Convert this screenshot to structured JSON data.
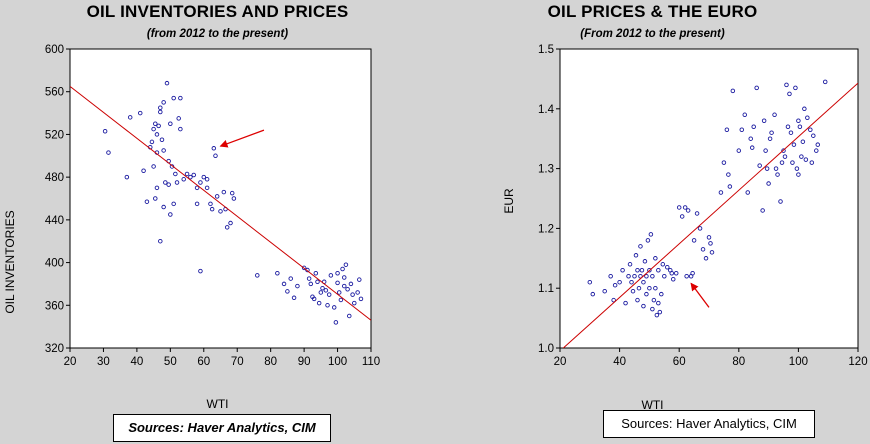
{
  "chart_data": [
    {
      "type": "scatter",
      "title": "OIL INVENTORIES AND PRICES",
      "subtitle": "(from 2012 to the present)",
      "xlabel": "WTI",
      "ylabel": "OIL INVENTORIES",
      "xlim": [
        20,
        110
      ],
      "ylim": [
        320,
        600
      ],
      "xticks": [
        20,
        30,
        40,
        50,
        60,
        70,
        80,
        90,
        100,
        110
      ],
      "yticks": [
        320,
        360,
        400,
        440,
        480,
        520,
        560,
        600
      ],
      "point_color": "#1a1aa0",
      "fit_line": {
        "x": [
          20,
          110
        ],
        "y": [
          565,
          346
        ],
        "color": "#cc0000"
      },
      "arrow": {
        "from": [
          78,
          524
        ],
        "to": [
          65,
          509
        ],
        "color": "#dd0000"
      },
      "source": "Sources: Haver Analytics, CIM",
      "points": [
        [
          30.5,
          523
        ],
        [
          31.5,
          503
        ],
        [
          37,
          480
        ],
        [
          38,
          536
        ],
        [
          41,
          540
        ],
        [
          42,
          486
        ],
        [
          43,
          457
        ],
        [
          44,
          508
        ],
        [
          44.5,
          513
        ],
        [
          45,
          525
        ],
        [
          45.5,
          530
        ],
        [
          45,
          490
        ],
        [
          46,
          520
        ],
        [
          46,
          503
        ],
        [
          46.5,
          528
        ],
        [
          47,
          545
        ],
        [
          47.5,
          515
        ],
        [
          47,
          541
        ],
        [
          48,
          550
        ],
        [
          48,
          505
        ],
        [
          48.5,
          475
        ],
        [
          49,
          568
        ],
        [
          49.5,
          495
        ],
        [
          49.5,
          473
        ],
        [
          50,
          530
        ],
        [
          50.5,
          490
        ],
        [
          51,
          554
        ],
        [
          51,
          455
        ],
        [
          51.5,
          483
        ],
        [
          52,
          475
        ],
        [
          52.5,
          535
        ],
        [
          53,
          554
        ],
        [
          53,
          525
        ],
        [
          45.5,
          460
        ],
        [
          46,
          470
        ],
        [
          47,
          420
        ],
        [
          48,
          452
        ],
        [
          50,
          445
        ],
        [
          54,
          478
        ],
        [
          55,
          483
        ],
        [
          56,
          480
        ],
        [
          57,
          482
        ],
        [
          58,
          470
        ],
        [
          59,
          475
        ],
        [
          60,
          480
        ],
        [
          61,
          478
        ],
        [
          58,
          455
        ],
        [
          61,
          470
        ],
        [
          62,
          455
        ],
        [
          62.5,
          450
        ],
        [
          63,
          507
        ],
        [
          63.5,
          500
        ],
        [
          64,
          462
        ],
        [
          65,
          448
        ],
        [
          66,
          466
        ],
        [
          66.5,
          450
        ],
        [
          67,
          433
        ],
        [
          68,
          437
        ],
        [
          68.5,
          465
        ],
        [
          69,
          460
        ],
        [
          59,
          392
        ],
        [
          76,
          388
        ],
        [
          82,
          390
        ],
        [
          84,
          380
        ],
        [
          85,
          373
        ],
        [
          86,
          385
        ],
        [
          87,
          367
        ],
        [
          88,
          378
        ],
        [
          90,
          395
        ],
        [
          91,
          393
        ],
        [
          91.5,
          385
        ],
        [
          92,
          380
        ],
        [
          92.5,
          368
        ],
        [
          93,
          366
        ],
        [
          93.5,
          390
        ],
        [
          94,
          382
        ],
        [
          94.5,
          362
        ],
        [
          95,
          372
        ],
        [
          95.5,
          376
        ],
        [
          96,
          382
        ],
        [
          97,
          360
        ],
        [
          97.5,
          370
        ],
        [
          98,
          388
        ],
        [
          99,
          358
        ],
        [
          99.5,
          344
        ],
        [
          100,
          381
        ],
        [
          100.5,
          372
        ],
        [
          101,
          365
        ],
        [
          101.5,
          394
        ],
        [
          102,
          386
        ],
        [
          102.5,
          398
        ],
        [
          103,
          375
        ],
        [
          103.5,
          350
        ],
        [
          104,
          380
        ],
        [
          104.5,
          370
        ],
        [
          105,
          362
        ],
        [
          106,
          372
        ],
        [
          106.5,
          384
        ],
        [
          107,
          366
        ],
        [
          100,
          390
        ],
        [
          102,
          378
        ],
        [
          96.5,
          374
        ]
      ]
    },
    {
      "type": "scatter",
      "title": "OIL PRICES & THE EURO",
      "subtitle": "(From 2012 to the present)",
      "xlabel": "WTI",
      "ylabel": "EUR",
      "xlim": [
        20,
        120
      ],
      "ylim": [
        1.0,
        1.5
      ],
      "xticks": [
        20,
        40,
        60,
        80,
        100,
        120
      ],
      "yticks": [
        1.0,
        1.1,
        1.2,
        1.3,
        1.4,
        1.5
      ],
      "point_color": "#1a1aa0",
      "fit_line": {
        "x": [
          20,
          120
        ],
        "y": [
          0.995,
          1.443
        ],
        "color": "#cc0000"
      },
      "arrow": {
        "from": [
          70,
          1.068
        ],
        "to": [
          64,
          1.108
        ],
        "color": "#dd0000"
      },
      "source": "Sources:  Haver Analytics, CIM",
      "points": [
        [
          30,
          1.11
        ],
        [
          31,
          1.09
        ],
        [
          35,
          1.095
        ],
        [
          37,
          1.12
        ],
        [
          38,
          1.08
        ],
        [
          38.5,
          1.105
        ],
        [
          40,
          1.11
        ],
        [
          41,
          1.13
        ],
        [
          42,
          1.075
        ],
        [
          43,
          1.12
        ],
        [
          43.5,
          1.14
        ],
        [
          44,
          1.11
        ],
        [
          44.5,
          1.095
        ],
        [
          45,
          1.12
        ],
        [
          45.5,
          1.155
        ],
        [
          46,
          1.13
        ],
        [
          46,
          1.08
        ],
        [
          46.5,
          1.1
        ],
        [
          47,
          1.12
        ],
        [
          47,
          1.17
        ],
        [
          47.5,
          1.13
        ],
        [
          48,
          1.11
        ],
        [
          48,
          1.07
        ],
        [
          48.5,
          1.145
        ],
        [
          49,
          1.12
        ],
        [
          49,
          1.09
        ],
        [
          49.5,
          1.18
        ],
        [
          50,
          1.13
        ],
        [
          50,
          1.1
        ],
        [
          50.5,
          1.19
        ],
        [
          51,
          1.12
        ],
        [
          51,
          1.065
        ],
        [
          51.5,
          1.08
        ],
        [
          52,
          1.15
        ],
        [
          52,
          1.1
        ],
        [
          52.5,
          1.055
        ],
        [
          53,
          1.13
        ],
        [
          53,
          1.075
        ],
        [
          53.5,
          1.06
        ],
        [
          54,
          1.09
        ],
        [
          54.5,
          1.14
        ],
        [
          55,
          1.12
        ],
        [
          56,
          1.135
        ],
        [
          57,
          1.13
        ],
        [
          57.5,
          1.125
        ],
        [
          58,
          1.115
        ],
        [
          59,
          1.125
        ],
        [
          60,
          1.235
        ],
        [
          61,
          1.22
        ],
        [
          62,
          1.235
        ],
        [
          62.5,
          1.12
        ],
        [
          63,
          1.23
        ],
        [
          64,
          1.12
        ],
        [
          64.5,
          1.125
        ],
        [
          65,
          1.18
        ],
        [
          66,
          1.225
        ],
        [
          67,
          1.2
        ],
        [
          68,
          1.165
        ],
        [
          69,
          1.15
        ],
        [
          70,
          1.185
        ],
        [
          70.5,
          1.175
        ],
        [
          71,
          1.16
        ],
        [
          74,
          1.26
        ],
        [
          75,
          1.31
        ],
        [
          76,
          1.365
        ],
        [
          76.5,
          1.29
        ],
        [
          77,
          1.27
        ],
        [
          78,
          1.43
        ],
        [
          80,
          1.33
        ],
        [
          81,
          1.365
        ],
        [
          82,
          1.39
        ],
        [
          83,
          1.26
        ],
        [
          84,
          1.35
        ],
        [
          84.5,
          1.335
        ],
        [
          85,
          1.37
        ],
        [
          86,
          1.435
        ],
        [
          87,
          1.305
        ],
        [
          88,
          1.23
        ],
        [
          88.5,
          1.38
        ],
        [
          89,
          1.33
        ],
        [
          89.5,
          1.3
        ],
        [
          90,
          1.275
        ],
        [
          91,
          1.36
        ],
        [
          92,
          1.39
        ],
        [
          92.5,
          1.3
        ],
        [
          93,
          1.29
        ],
        [
          94,
          1.245
        ],
        [
          94.5,
          1.31
        ],
        [
          95,
          1.33
        ],
        [
          96,
          1.44
        ],
        [
          96.5,
          1.37
        ],
        [
          97,
          1.425
        ],
        [
          97.5,
          1.36
        ],
        [
          98,
          1.31
        ],
        [
          98.5,
          1.34
        ],
        [
          99,
          1.435
        ],
        [
          99.5,
          1.3
        ],
        [
          100,
          1.38
        ],
        [
          100.5,
          1.37
        ],
        [
          101,
          1.32
        ],
        [
          101.5,
          1.345
        ],
        [
          102,
          1.4
        ],
        [
          102.5,
          1.315
        ],
        [
          103,
          1.385
        ],
        [
          104,
          1.365
        ],
        [
          104.5,
          1.31
        ],
        [
          105,
          1.355
        ],
        [
          106,
          1.33
        ],
        [
          106.5,
          1.34
        ],
        [
          109,
          1.445
        ],
        [
          100,
          1.29
        ],
        [
          95.5,
          1.32
        ],
        [
          90.5,
          1.35
        ]
      ]
    }
  ]
}
